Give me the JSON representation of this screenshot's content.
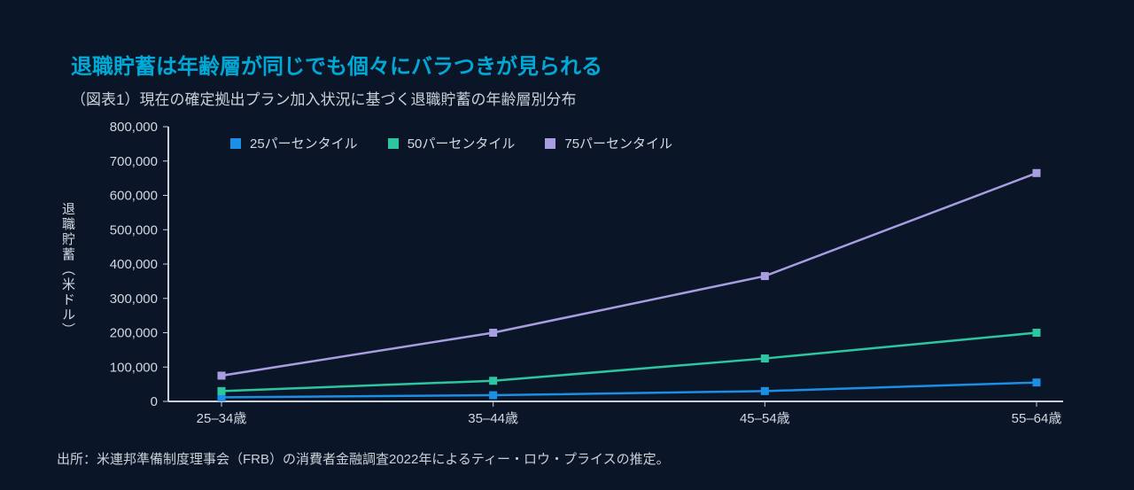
{
  "title": "退職貯蓄は年齢層が同じでも個々にバラつきが見られる",
  "subtitle": "（図表1）現在の確定拠出プラン加入状況に基づく退職貯蓄の年齢層別分布",
  "source": "出所：米連邦準備制度理事会（FRB）の消費者金融調査2022年によるティー・ロウ・プライスの推定。",
  "yaxis_title": "退職貯蓄（米ドル）",
  "chart": {
    "type": "line",
    "background_color": "#0a1628",
    "axis_color": "#c8d0d8",
    "axis_width": 2,
    "tick_font_size": 15,
    "xlim": [
      0,
      3
    ],
    "ylim": [
      0,
      800000
    ],
    "ytick_step": 100000,
    "ytick_labels": [
      "0",
      "100,000",
      "200,000",
      "300,000",
      "400,000",
      "500,000",
      "600,000",
      "700,000",
      "800,000"
    ],
    "categories": [
      "25–34歳",
      "35–44歳",
      "45–54歳",
      "55–64歳"
    ],
    "series": [
      {
        "name": "25パーセンタイル",
        "color": "#1b8fe6",
        "marker": "square",
        "marker_size": 9,
        "line_width": 2.5,
        "values": [
          12000,
          18000,
          30000,
          55000
        ]
      },
      {
        "name": "50パーセンタイル",
        "color": "#2cc6a0",
        "marker": "square",
        "marker_size": 9,
        "line_width": 2.5,
        "values": [
          30000,
          60000,
          125000,
          200000
        ]
      },
      {
        "name": "75パーセンタイル",
        "color": "#a79de0",
        "marker": "square",
        "marker_size": 9,
        "line_width": 2.5,
        "values": [
          75000,
          200000,
          365000,
          665000
        ]
      }
    ],
    "legend_position": "top"
  }
}
